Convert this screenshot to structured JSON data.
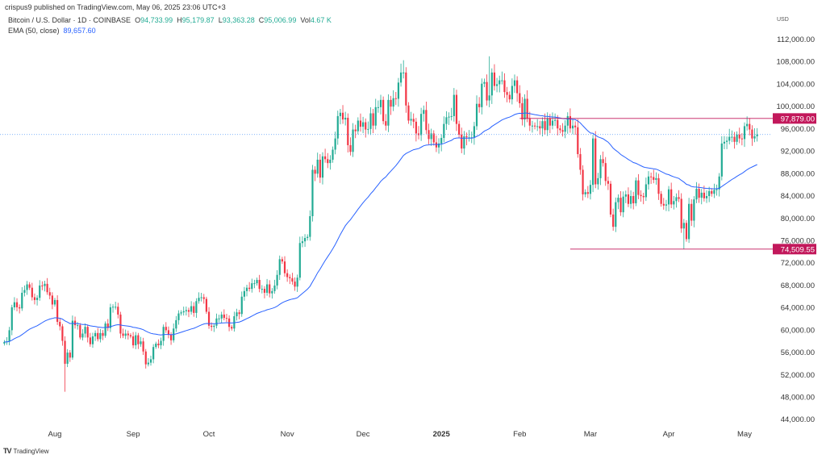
{
  "header": {
    "published": "crispus9 published on TradingView.com, May 06, 2025 23:06 UTC+3",
    "symbol": "Bitcoin / U.S. Dollar · 1D · COINBASE",
    "o_label": "O",
    "o": "94,733.99",
    "h_label": "H",
    "h": "95,179.87",
    "l_label": "L",
    "l": "93,363.28",
    "c_label": "C",
    "c": "95,006.99",
    "vol_label": "Vol",
    "vol": "4.67 K",
    "ema_label": "EMA (50, close)",
    "ema": "89,657.60"
  },
  "footer": {
    "brand": "TradingView"
  },
  "colors": {
    "up": "#22ab94",
    "down": "#f23645",
    "ema": "#2962ff",
    "level": "#c2185b",
    "price_line": "#5b9cf6"
  },
  "chart_data": {
    "type": "candlestick",
    "currency": "USD",
    "start_date": "2024-07-12",
    "interval": "1D",
    "ylim": [
      44000,
      112000
    ],
    "grid": false,
    "y_ticks": [
      "112,000.00",
      "108,000.00",
      "104,000.00",
      "100,000.00",
      "96,000.00",
      "92,000.00",
      "88,000.00",
      "84,000.00",
      "80,000.00",
      "76,000.00",
      "72,000.00",
      "68,000.00",
      "64,000.00",
      "60,000.00",
      "56,000.00",
      "52,000.00",
      "48,000.00",
      "44,000.00"
    ],
    "x_ticks": [
      {
        "label": "Aug",
        "date": "2024-08-01"
      },
      {
        "label": "Sep",
        "date": "2024-09-01"
      },
      {
        "label": "Oct",
        "date": "2024-10-01"
      },
      {
        "label": "Nov",
        "date": "2024-11-01"
      },
      {
        "label": "Dec",
        "date": "2024-12-01"
      },
      {
        "label": "2025",
        "date": "2025-01-01",
        "bold": true
      },
      {
        "label": "Feb",
        "date": "2025-02-01"
      },
      {
        "label": "Mar",
        "date": "2025-03-01"
      },
      {
        "label": "Apr",
        "date": "2025-04-01"
      },
      {
        "label": "May",
        "date": "2025-05-01"
      }
    ],
    "indicator": {
      "name": "EMA (50, close)",
      "period": 50
    },
    "levels": [
      {
        "value": 97879.0,
        "label": "97,879.00",
        "from": "2025-02-01"
      },
      {
        "value": 74509.55,
        "label": "74,509.55",
        "from": "2025-02-21"
      }
    ],
    "last_price": 95006.99,
    "wick_extremes": [
      {
        "date": "2024-08-05",
        "low": 49000
      },
      {
        "date": "2024-12-17",
        "high": 108300
      },
      {
        "date": "2025-01-20",
        "high": 109000
      },
      {
        "date": "2025-04-07",
        "low": 74509.55
      }
    ],
    "closes": [
      57900,
      58000,
      60000,
      64100,
      65000,
      64100,
      63900,
      66700,
      67200,
      68200,
      67600,
      65900,
      65400,
      65800,
      68000,
      67900,
      68300,
      66800,
      66200,
      64600,
      65400,
      61500,
      60700,
      58100,
      54000,
      56000,
      55100,
      61700,
      60900,
      60900,
      58700,
      59400,
      60600,
      58700,
      57500,
      58900,
      59500,
      58400,
      59500,
      59000,
      61200,
      60400,
      64100,
      64200,
      64200,
      62800,
      59400,
      59000,
      59400,
      59100,
      58900,
      57300,
      59100,
      57500,
      58000,
      56200,
      53900,
      54200,
      54800,
      57000,
      57600,
      57300,
      58100,
      60600,
      60000,
      59200,
      58200,
      60300,
      61800,
      63000,
      63200,
      63400,
      63600,
      63300,
      64300,
      63100,
      65200,
      65800,
      65900,
      65600,
      63300,
      60800,
      60600,
      60800,
      62100,
      62100,
      62800,
      62200,
      62100,
      60600,
      60300,
      62500,
      63200,
      62900,
      66000,
      67000,
      67600,
      67400,
      68400,
      68400,
      69000,
      67400,
      67400,
      66700,
      68200,
      66600,
      67000,
      68000,
      69900,
      72700,
      72300,
      70200,
      69500,
      69300,
      68700,
      67800,
      69400,
      75600,
      75900,
      76500,
      76700,
      80400,
      88700,
      88000,
      90500,
      87300,
      91100,
      90600,
      89900,
      90500,
      92300,
      94300,
      98300,
      98900,
      97700,
      98000,
      93100,
      91900,
      95900,
      95600,
      97500,
      96400,
      97200,
      95900,
      96000,
      98800,
      96600,
      99900,
      99900,
      101200,
      97400,
      96600,
      101200,
      100000,
      101500,
      101400,
      104300,
      106100,
      106100,
      100200,
      97500,
      97800,
      97300,
      95200,
      94900,
      98700,
      99400,
      95800,
      94200,
      95200,
      93600,
      92700,
      93400,
      94400,
      96900,
      98100,
      98200,
      98300,
      102100,
      96900,
      95000,
      92500,
      94700,
      94500,
      94500,
      94500,
      96500,
      100500,
      99900,
      104100,
      104400,
      101100,
      102000,
      106100,
      103700,
      104000,
      104700,
      104700,
      102600,
      102100,
      101300,
      103700,
      104700,
      102400,
      100600,
      97700,
      101400,
      97900,
      96600,
      96600,
      96500,
      96500,
      96100,
      97400,
      95800,
      97900,
      96600,
      97500,
      97600,
      96100,
      95800,
      95500,
      96600,
      98300,
      96100,
      96600,
      96300,
      91500,
      88700,
      84300,
      84700,
      84400,
      86000,
      94300,
      86100,
      87200,
      90600,
      89900,
      86700,
      86200,
      80700,
      78500,
      82900,
      83700,
      81100,
      83900,
      84300,
      82600,
      84000,
      82700,
      86800,
      84200,
      84000,
      83800,
      86100,
      87500,
      87400,
      86900,
      87200,
      84400,
      82600,
      82300,
      82500,
      85200,
      82500,
      83100,
      83800,
      83500,
      78200,
      79200,
      76300,
      82600,
      79600,
      83400,
      85300,
      83700,
      84600,
      83600,
      84000,
      84900,
      84400,
      85100,
      85200,
      87500,
      93400,
      93700,
      93900,
      94600,
      94600,
      93700,
      95000,
      94300,
      94200,
      96500,
      96900,
      95900,
      94300,
      94700,
      95007
    ]
  }
}
